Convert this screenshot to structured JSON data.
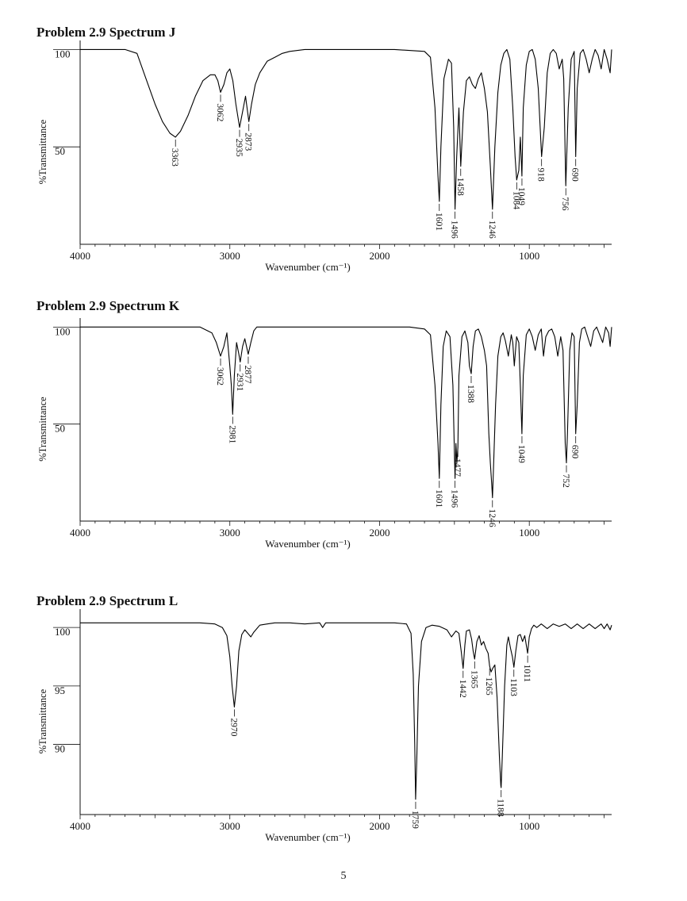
{
  "page_number": "5",
  "chart_data": [
    {
      "type": "line",
      "title": "Problem 2.9 Spectrum J",
      "xlabel": "Wavenumber (cm⁻¹)",
      "ylabel": "%Transmittance",
      "x_reversed": true,
      "xlim": [
        4000,
        450
      ],
      "x_ticks": [
        4000,
        3000,
        2000,
        1000
      ],
      "ylim": [
        0,
        103
      ],
      "y_ticks": [
        100,
        50
      ],
      "series": [
        {
          "color": "#000000",
          "x": [
            4000,
            3700,
            3620,
            3560,
            3500,
            3450,
            3400,
            3363,
            3330,
            3280,
            3230,
            3180,
            3130,
            3100,
            3080,
            3062,
            3040,
            3020,
            3000,
            2980,
            2960,
            2935,
            2910,
            2895,
            2873,
            2855,
            2830,
            2800,
            2750,
            2700,
            2650,
            2600,
            2500,
            2200,
            1900,
            1700,
            1660,
            1630,
            1610,
            1601,
            1590,
            1570,
            1540,
            1520,
            1505,
            1496,
            1485,
            1470,
            1458,
            1440,
            1420,
            1400,
            1380,
            1360,
            1340,
            1320,
            1300,
            1280,
            1260,
            1246,
            1230,
            1210,
            1190,
            1170,
            1150,
            1130,
            1110,
            1095,
            1084,
            1070,
            1060,
            1049,
            1040,
            1020,
            1000,
            980,
            960,
            940,
            918,
            900,
            880,
            860,
            840,
            820,
            800,
            780,
            770,
            756,
            740,
            720,
            700,
            690,
            680,
            660,
            640,
            620,
            600,
            580,
            560,
            540,
            520,
            500,
            480,
            460,
            450
          ],
          "y": [
            100,
            100,
            98,
            85,
            72,
            63,
            57,
            55,
            58,
            66,
            76,
            84,
            87,
            87,
            84,
            78,
            82,
            88,
            90,
            84,
            72,
            60,
            70,
            76,
            63,
            72,
            82,
            88,
            94,
            96,
            98,
            99,
            100,
            100,
            100,
            99,
            96,
            70,
            35,
            22,
            50,
            85,
            95,
            93,
            60,
            18,
            45,
            70,
            40,
            68,
            84,
            86,
            82,
            80,
            85,
            88,
            80,
            68,
            40,
            18,
            50,
            78,
            92,
            98,
            100,
            95,
            70,
            45,
            33,
            38,
            55,
            35,
            70,
            92,
            99,
            100,
            95,
            80,
            45,
            60,
            88,
            98,
            100,
            98,
            90,
            95,
            85,
            30,
            70,
            95,
            99,
            45,
            80,
            98,
            100,
            95,
            88,
            95,
            100,
            97,
            90,
            100,
            95,
            88,
            100
          ]
        }
      ],
      "annotations": [
        {
          "label": "3363",
          "x": 3363,
          "y": 55
        },
        {
          "label": "3062",
          "x": 3062,
          "y": 78
        },
        {
          "label": "2935",
          "x": 2935,
          "y": 60
        },
        {
          "label": "2873",
          "x": 2873,
          "y": 63
        },
        {
          "label": "1601",
          "x": 1601,
          "y": 22
        },
        {
          "label": "1496",
          "x": 1496,
          "y": 18
        },
        {
          "label": "1458",
          "x": 1458,
          "y": 40
        },
        {
          "label": "1246",
          "x": 1246,
          "y": 18
        },
        {
          "label": "1084",
          "x": 1084,
          "y": 33
        },
        {
          "label": "1049",
          "x": 1049,
          "y": 35
        },
        {
          "label": "918",
          "x": 918,
          "y": 45
        },
        {
          "label": "756",
          "x": 756,
          "y": 30
        },
        {
          "label": "690",
          "x": 690,
          "y": 45
        }
      ]
    },
    {
      "type": "line",
      "title": "Problem 2.9 Spectrum K",
      "xlabel": "Wavenumber (cm⁻¹)",
      "ylabel": "%Transmittance",
      "x_reversed": true,
      "xlim": [
        4000,
        450
      ],
      "x_ticks": [
        4000,
        3000,
        2000,
        1000
      ],
      "ylim": [
        0,
        103
      ],
      "y_ticks": [
        100,
        50
      ],
      "series": [
        {
          "color": "#000000",
          "x": [
            4000,
            3200,
            3120,
            3090,
            3062,
            3040,
            3020,
            3000,
            2990,
            2981,
            2970,
            2955,
            2940,
            2931,
            2915,
            2900,
            2877,
            2860,
            2840,
            2820,
            2800,
            2750,
            2600,
            2200,
            1800,
            1700,
            1660,
            1630,
            1610,
            1601,
            1590,
            1575,
            1555,
            1530,
            1510,
            1500,
            1496,
            1490,
            1484,
            1477,
            1470,
            1450,
            1430,
            1410,
            1400,
            1388,
            1375,
            1360,
            1340,
            1320,
            1300,
            1285,
            1270,
            1260,
            1250,
            1246,
            1240,
            1225,
            1210,
            1190,
            1175,
            1160,
            1140,
            1120,
            1110,
            1100,
            1085,
            1070,
            1060,
            1049,
            1040,
            1020,
            1000,
            980,
            960,
            940,
            920,
            905,
            890,
            870,
            850,
            830,
            810,
            790,
            775,
            760,
            752,
            745,
            730,
            715,
            700,
            690,
            680,
            665,
            650,
            630,
            610,
            590,
            570,
            550,
            530,
            510,
            490,
            470,
            460,
            450
          ],
          "y": [
            100,
            100,
            97,
            92,
            85,
            90,
            97,
            80,
            70,
            55,
            75,
            92,
            86,
            82,
            90,
            94,
            86,
            92,
            98,
            100,
            100,
            100,
            100,
            100,
            100,
            99,
            96,
            70,
            40,
            22,
            60,
            90,
            98,
            95,
            70,
            35,
            22,
            40,
            30,
            38,
            75,
            95,
            98,
            92,
            80,
            76,
            90,
            98,
            99,
            95,
            88,
            80,
            45,
            30,
            18,
            12,
            25,
            60,
            85,
            95,
            97,
            93,
            85,
            96,
            92,
            80,
            95,
            92,
            70,
            45,
            75,
            96,
            99,
            95,
            88,
            96,
            99,
            85,
            95,
            98,
            99,
            95,
            85,
            95,
            88,
            40,
            30,
            45,
            88,
            97,
            95,
            45,
            60,
            92,
            99,
            100,
            95,
            90,
            98,
            100,
            96,
            92,
            100,
            97,
            90,
            100
          ]
        }
      ],
      "annotations": [
        {
          "label": "3062",
          "x": 3062,
          "y": 85
        },
        {
          "label": "2981",
          "x": 2981,
          "y": 55
        },
        {
          "label": "2931",
          "x": 2931,
          "y": 82
        },
        {
          "label": "2877",
          "x": 2877,
          "y": 86
        },
        {
          "label": "1601",
          "x": 1601,
          "y": 22
        },
        {
          "label": "1496",
          "x": 1496,
          "y": 22
        },
        {
          "label": "1477",
          "x": 1477,
          "y": 38
        },
        {
          "label": "1388",
          "x": 1388,
          "y": 76
        },
        {
          "label": "1246",
          "x": 1246,
          "y": 12
        },
        {
          "label": "1049",
          "x": 1049,
          "y": 45
        },
        {
          "label": "752",
          "x": 752,
          "y": 30
        },
        {
          "label": "690",
          "x": 690,
          "y": 45
        }
      ]
    },
    {
      "type": "line",
      "title": "Problem 2.9 Spectrum L",
      "xlabel": "Wavenumber (cm⁻¹)",
      "ylabel": "%Transmittance",
      "x_reversed": true,
      "xlim": [
        4000,
        450
      ],
      "x_ticks": [
        4000,
        3000,
        2000,
        1000
      ],
      "ylim": [
        84,
        101.3
      ],
      "y_ticks": [
        100,
        95,
        90
      ],
      "series": [
        {
          "color": "#000000",
          "x": [
            4000,
            3200,
            3100,
            3050,
            3020,
            3000,
            2985,
            2970,
            2955,
            2940,
            2920,
            2900,
            2880,
            2860,
            2840,
            2820,
            2800,
            2750,
            2700,
            2600,
            2500,
            2400,
            2380,
            2360,
            2300,
            2100,
            1900,
            1820,
            1790,
            1775,
            1765,
            1759,
            1752,
            1740,
            1720,
            1690,
            1650,
            1600,
            1550,
            1520,
            1490,
            1470,
            1455,
            1442,
            1430,
            1420,
            1400,
            1385,
            1375,
            1365,
            1350,
            1335,
            1320,
            1305,
            1290,
            1275,
            1265,
            1255,
            1245,
            1230,
            1215,
            1200,
            1190,
            1188,
            1180,
            1165,
            1150,
            1140,
            1125,
            1113,
            1103,
            1090,
            1075,
            1060,
            1045,
            1030,
            1020,
            1011,
            1000,
            985,
            970,
            950,
            920,
            880,
            840,
            800,
            760,
            720,
            680,
            640,
            600,
            560,
            520,
            500,
            480,
            460,
            450
          ],
          "y": [
            100.4,
            100.4,
            100.3,
            100.0,
            99.3,
            97.5,
            95.0,
            93.2,
            95.0,
            98.0,
            99.4,
            99.8,
            99.5,
            99.2,
            99.6,
            99.9,
            100.2,
            100.3,
            100.4,
            100.4,
            100.3,
            100.4,
            100.0,
            100.4,
            100.4,
            100.4,
            100.4,
            100.3,
            99.5,
            96.0,
            90.0,
            85.3,
            88.5,
            95.0,
            98.8,
            100.0,
            100.2,
            100.1,
            99.8,
            99.2,
            99.7,
            99.5,
            98.0,
            96.5,
            98.5,
            99.7,
            99.8,
            99.0,
            98.0,
            97.3,
            98.8,
            99.3,
            98.5,
            98.8,
            98.2,
            97.8,
            96.7,
            96.2,
            96.5,
            96.8,
            94.0,
            89.0,
            86.5,
            86.3,
            89.0,
            95.0,
            98.5,
            99.2,
            98.2,
            97.5,
            96.6,
            98.0,
            99.3,
            99.4,
            98.8,
            99.3,
            98.5,
            97.8,
            99.2,
            99.9,
            100.2,
            100.0,
            100.3,
            99.9,
            100.3,
            100.1,
            100.3,
            99.9,
            100.3,
            99.9,
            100.3,
            99.9,
            100.3,
            99.9,
            100.3,
            99.8,
            100.2
          ]
        }
      ],
      "annotations": [
        {
          "label": "2970",
          "x": 2970,
          "y": 93.2
        },
        {
          "label": "1759",
          "x": 1759,
          "y": 85.3
        },
        {
          "label": "1442",
          "x": 1442,
          "y": 96.5
        },
        {
          "label": "1365",
          "x": 1365,
          "y": 97.3
        },
        {
          "label": "1265",
          "x": 1265,
          "y": 96.7
        },
        {
          "label": "1188",
          "x": 1188,
          "y": 86.3
        },
        {
          "label": "1103",
          "x": 1103,
          "y": 96.6
        },
        {
          "label": "1011",
          "x": 1011,
          "y": 97.8
        }
      ]
    }
  ]
}
